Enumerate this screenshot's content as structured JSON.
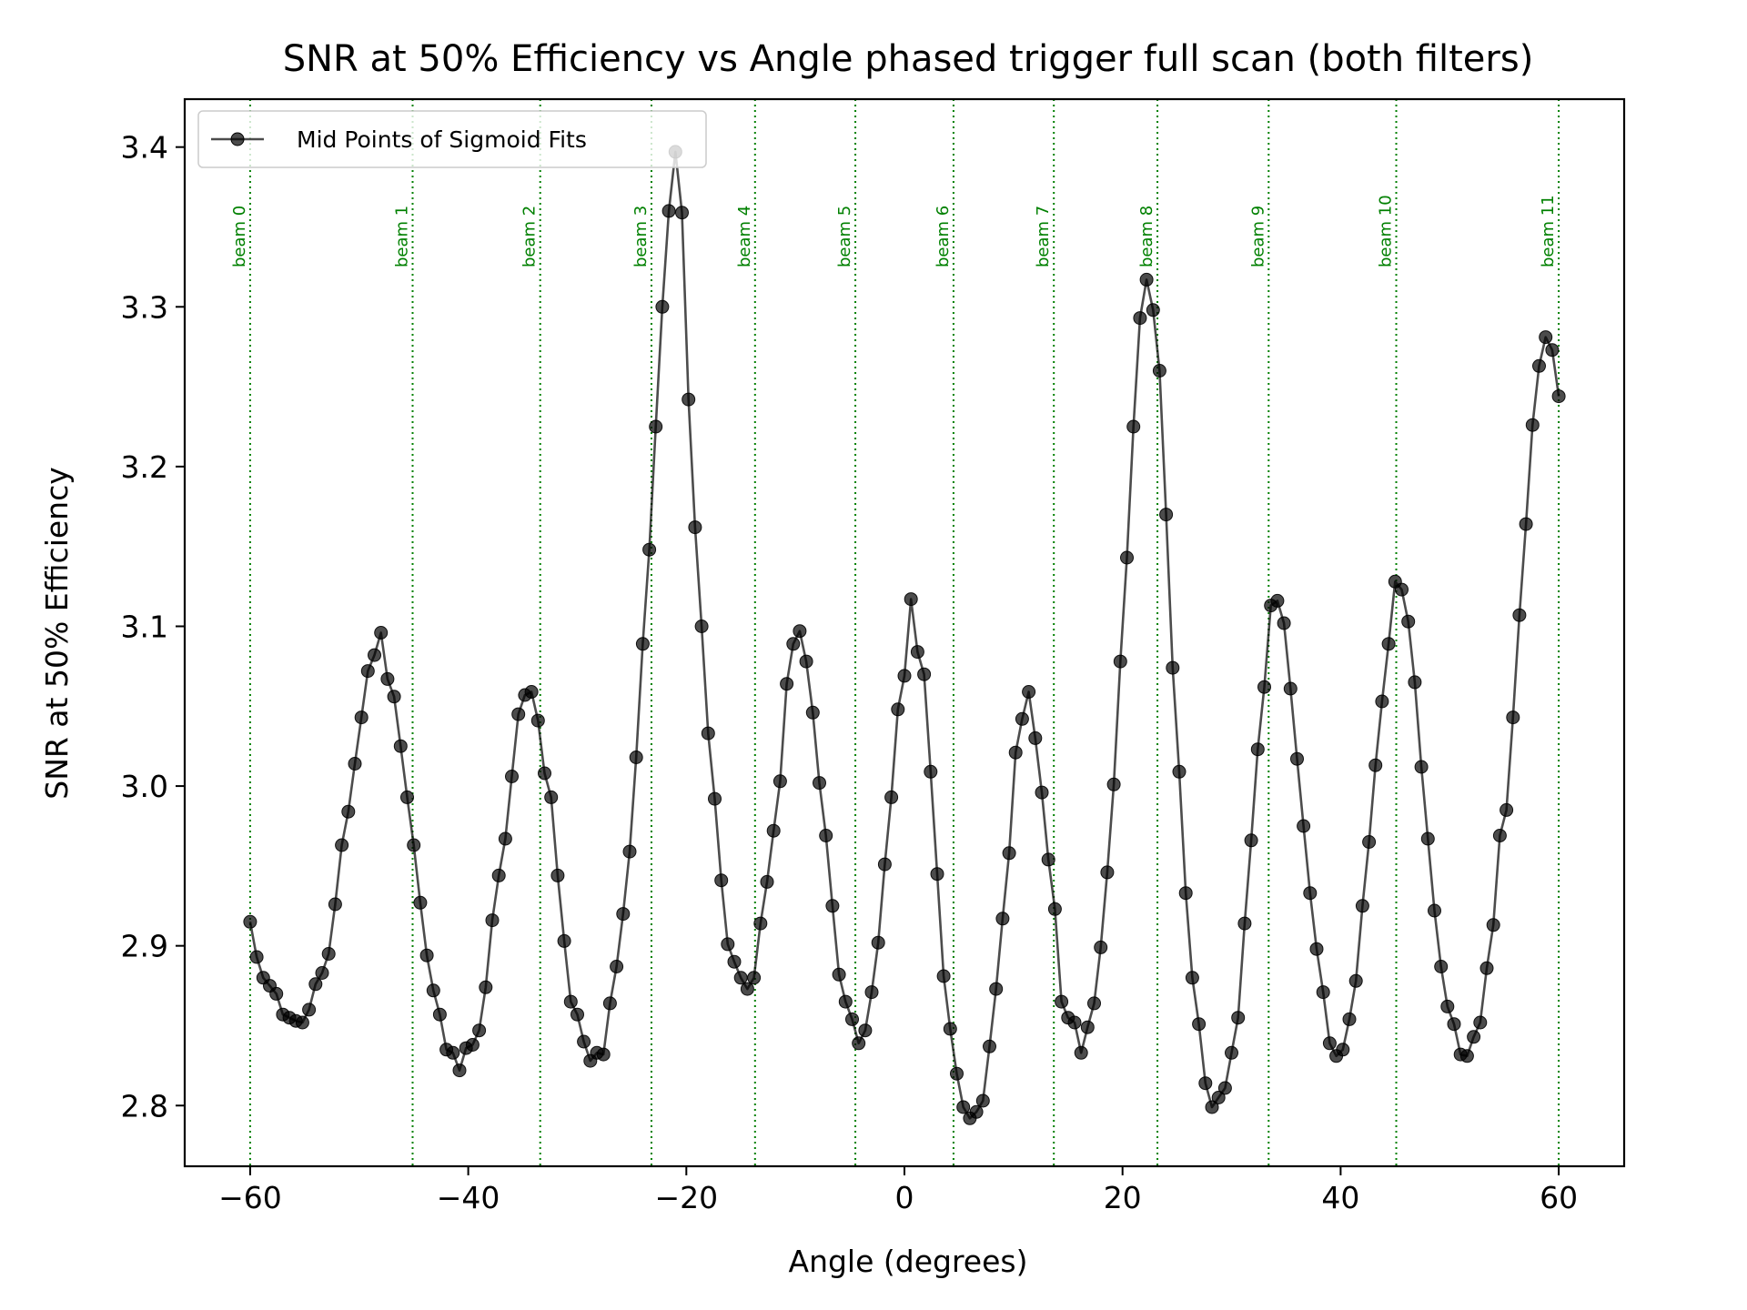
{
  "chart_data": {
    "type": "line",
    "title": "SNR at 50% Efficiency vs Angle phased trigger full scan (both filters)",
    "xlabel": "Angle (degrees)",
    "ylabel": "SNR at 50% Efficiency",
    "xlim": [
      -66,
      66
    ],
    "ylim": [
      2.762,
      3.43
    ],
    "xticks": [
      -60,
      -40,
      -20,
      0,
      20,
      40,
      60
    ],
    "xtick_labels": [
      "−60",
      "−40",
      "−20",
      "0",
      "20",
      "40",
      "60"
    ],
    "yticks": [
      2.8,
      2.9,
      3.0,
      3.1,
      3.2,
      3.3,
      3.4
    ],
    "ytick_labels": [
      "2.8",
      "2.9",
      "3.0",
      "3.1",
      "3.2",
      "3.3",
      "3.4"
    ],
    "grid": false,
    "legend_position": "upper-left",
    "series": [
      {
        "name": "Mid Points of Sigmoid Fits",
        "color": "#000000",
        "marker": "circle",
        "points": [
          [
            -60.0,
            2.915
          ],
          [
            -59.4,
            2.893
          ],
          [
            -58.8,
            2.88
          ],
          [
            -58.2,
            2.875
          ],
          [
            -57.6,
            2.87
          ],
          [
            -57.0,
            2.857
          ],
          [
            -56.4,
            2.855
          ],
          [
            -55.8,
            2.853
          ],
          [
            -55.2,
            2.852
          ],
          [
            -54.6,
            2.86
          ],
          [
            -54.0,
            2.876
          ],
          [
            -53.4,
            2.883
          ],
          [
            -52.8,
            2.895
          ],
          [
            -52.2,
            2.926
          ],
          [
            -51.6,
            2.963
          ],
          [
            -51.0,
            2.984
          ],
          [
            -50.4,
            3.014
          ],
          [
            -49.8,
            3.043
          ],
          [
            -49.2,
            3.072
          ],
          [
            -48.6,
            3.082
          ],
          [
            -48.0,
            3.096
          ],
          [
            -47.4,
            3.067
          ],
          [
            -46.8,
            3.056
          ],
          [
            -46.2,
            3.025
          ],
          [
            -45.6,
            2.993
          ],
          [
            -45.0,
            2.963
          ],
          [
            -44.4,
            2.927
          ],
          [
            -43.8,
            2.894
          ],
          [
            -43.2,
            2.872
          ],
          [
            -42.6,
            2.857
          ],
          [
            -42.0,
            2.835
          ],
          [
            -41.4,
            2.833
          ],
          [
            -40.8,
            2.822
          ],
          [
            -40.2,
            2.836
          ],
          [
            -39.6,
            2.838
          ],
          [
            -39.0,
            2.847
          ],
          [
            -38.4,
            2.874
          ],
          [
            -37.8,
            2.916
          ],
          [
            -37.2,
            2.944
          ],
          [
            -36.6,
            2.967
          ],
          [
            -36.0,
            3.006
          ],
          [
            -35.4,
            3.045
          ],
          [
            -34.8,
            3.057
          ],
          [
            -34.2,
            3.059
          ],
          [
            -33.6,
            3.041
          ],
          [
            -33.0,
            3.008
          ],
          [
            -32.4,
            2.993
          ],
          [
            -31.8,
            2.944
          ],
          [
            -31.2,
            2.903
          ],
          [
            -30.6,
            2.865
          ],
          [
            -30.0,
            2.857
          ],
          [
            -29.4,
            2.84
          ],
          [
            -28.8,
            2.828
          ],
          [
            -28.2,
            2.833
          ],
          [
            -27.6,
            2.832
          ],
          [
            -27.0,
            2.864
          ],
          [
            -26.4,
            2.887
          ],
          [
            -25.8,
            2.92
          ],
          [
            -25.2,
            2.959
          ],
          [
            -24.6,
            3.018
          ],
          [
            -24.0,
            3.089
          ],
          [
            -23.4,
            3.148
          ],
          [
            -22.8,
            3.225
          ],
          [
            -22.2,
            3.3
          ],
          [
            -21.6,
            3.36
          ],
          [
            -21.0,
            3.397
          ],
          [
            -20.4,
            3.359
          ],
          [
            -19.8,
            3.242
          ],
          [
            -19.2,
            3.162
          ],
          [
            -18.6,
            3.1
          ],
          [
            -18.0,
            3.033
          ],
          [
            -17.4,
            2.992
          ],
          [
            -16.8,
            2.941
          ],
          [
            -16.2,
            2.901
          ],
          [
            -15.6,
            2.89
          ],
          [
            -15.0,
            2.88
          ],
          [
            -14.4,
            2.873
          ],
          [
            -13.8,
            2.88
          ],
          [
            -13.2,
            2.914
          ],
          [
            -12.6,
            2.94
          ],
          [
            -12.0,
            2.972
          ],
          [
            -11.4,
            3.003
          ],
          [
            -10.8,
            3.064
          ],
          [
            -10.2,
            3.089
          ],
          [
            -9.6,
            3.097
          ],
          [
            -9.0,
            3.078
          ],
          [
            -8.4,
            3.046
          ],
          [
            -7.8,
            3.002
          ],
          [
            -7.2,
            2.969
          ],
          [
            -6.6,
            2.925
          ],
          [
            -6.0,
            2.882
          ],
          [
            -5.4,
            2.865
          ],
          [
            -4.8,
            2.854
          ],
          [
            -4.2,
            2.839
          ],
          [
            -3.6,
            2.847
          ],
          [
            -3.0,
            2.871
          ],
          [
            -2.4,
            2.902
          ],
          [
            -1.8,
            2.951
          ],
          [
            -1.2,
            2.993
          ],
          [
            -0.6,
            3.048
          ],
          [
            0.0,
            3.069
          ],
          [
            0.6,
            3.117
          ],
          [
            1.2,
            3.084
          ],
          [
            1.8,
            3.07
          ],
          [
            2.4,
            3.009
          ],
          [
            3.0,
            2.945
          ],
          [
            3.6,
            2.881
          ],
          [
            4.2,
            2.848
          ],
          [
            4.8,
            2.82
          ],
          [
            5.4,
            2.799
          ],
          [
            6.0,
            2.792
          ],
          [
            6.6,
            2.796
          ],
          [
            7.2,
            2.803
          ],
          [
            7.8,
            2.837
          ],
          [
            8.4,
            2.873
          ],
          [
            9.0,
            2.917
          ],
          [
            9.6,
            2.958
          ],
          [
            10.2,
            3.021
          ],
          [
            10.8,
            3.042
          ],
          [
            11.4,
            3.059
          ],
          [
            12.0,
            3.03
          ],
          [
            12.6,
            2.996
          ],
          [
            13.2,
            2.954
          ],
          [
            13.8,
            2.923
          ],
          [
            14.4,
            2.865
          ],
          [
            15.0,
            2.855
          ],
          [
            15.6,
            2.852
          ],
          [
            16.2,
            2.833
          ],
          [
            16.8,
            2.849
          ],
          [
            17.4,
            2.864
          ],
          [
            18.0,
            2.899
          ],
          [
            18.6,
            2.946
          ],
          [
            19.2,
            3.001
          ],
          [
            19.8,
            3.078
          ],
          [
            20.4,
            3.143
          ],
          [
            21.0,
            3.225
          ],
          [
            21.6,
            3.293
          ],
          [
            22.2,
            3.317
          ],
          [
            22.8,
            3.298
          ],
          [
            23.4,
            3.26
          ],
          [
            24.0,
            3.17
          ],
          [
            24.6,
            3.074
          ],
          [
            25.2,
            3.009
          ],
          [
            25.8,
            2.933
          ],
          [
            26.4,
            2.88
          ],
          [
            27.0,
            2.851
          ],
          [
            27.6,
            2.814
          ],
          [
            28.2,
            2.799
          ],
          [
            28.8,
            2.805
          ],
          [
            29.4,
            2.811
          ],
          [
            30.0,
            2.833
          ],
          [
            30.6,
            2.855
          ],
          [
            31.2,
            2.914
          ],
          [
            31.8,
            2.966
          ],
          [
            32.4,
            3.023
          ],
          [
            33.0,
            3.062
          ],
          [
            33.6,
            3.113
          ],
          [
            34.2,
            3.116
          ],
          [
            34.8,
            3.102
          ],
          [
            35.4,
            3.061
          ],
          [
            36.0,
            3.017
          ],
          [
            36.6,
            2.975
          ],
          [
            37.2,
            2.933
          ],
          [
            37.8,
            2.898
          ],
          [
            38.4,
            2.871
          ],
          [
            39.0,
            2.839
          ],
          [
            39.6,
            2.831
          ],
          [
            40.2,
            2.835
          ],
          [
            40.8,
            2.854
          ],
          [
            41.4,
            2.878
          ],
          [
            42.0,
            2.925
          ],
          [
            42.6,
            2.965
          ],
          [
            43.2,
            3.013
          ],
          [
            43.8,
            3.053
          ],
          [
            44.4,
            3.089
          ],
          [
            45.0,
            3.128
          ],
          [
            45.6,
            3.123
          ],
          [
            46.2,
            3.103
          ],
          [
            46.8,
            3.065
          ],
          [
            47.4,
            3.012
          ],
          [
            48.0,
            2.967
          ],
          [
            48.6,
            2.922
          ],
          [
            49.2,
            2.887
          ],
          [
            49.8,
            2.862
          ],
          [
            50.4,
            2.851
          ],
          [
            51.0,
            2.832
          ],
          [
            51.6,
            2.831
          ],
          [
            52.2,
            2.843
          ],
          [
            52.8,
            2.852
          ],
          [
            53.4,
            2.886
          ],
          [
            54.0,
            2.913
          ],
          [
            54.6,
            2.969
          ],
          [
            55.2,
            2.985
          ],
          [
            55.8,
            3.043
          ],
          [
            56.4,
            3.107
          ],
          [
            57.0,
            3.164
          ],
          [
            57.6,
            3.226
          ],
          [
            58.2,
            3.263
          ],
          [
            58.8,
            3.281
          ],
          [
            59.4,
            3.273
          ],
          [
            60.0,
            3.244
          ]
        ]
      }
    ],
    "beams": [
      {
        "label": "beam 0",
        "angle": -60.0
      },
      {
        "label": "beam 1",
        "angle": -45.1
      },
      {
        "label": "beam 2",
        "angle": -33.4
      },
      {
        "label": "beam 3",
        "angle": -23.2
      },
      {
        "label": "beam 4",
        "angle": -13.7
      },
      {
        "label": "beam 5",
        "angle": -4.5
      },
      {
        "label": "beam 6",
        "angle": 4.5
      },
      {
        "label": "beam 7",
        "angle": 13.7
      },
      {
        "label": "beam 8",
        "angle": 23.2
      },
      {
        "label": "beam 9",
        "angle": 33.4
      },
      {
        "label": "beam 10",
        "angle": 45.1
      },
      {
        "label": "beam 11",
        "angle": 60.0
      }
    ],
    "beam_line_color": "#008000"
  }
}
